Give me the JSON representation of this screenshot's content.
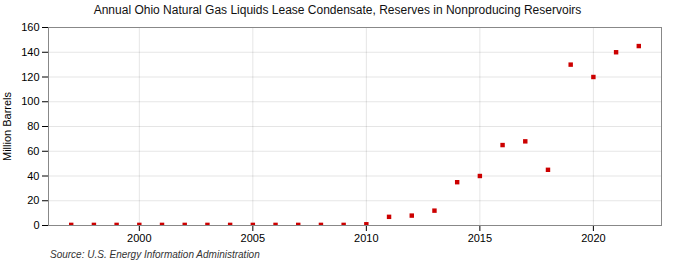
{
  "chart_data": {
    "type": "scatter",
    "title": "Annual Ohio Natural Gas Liquids Lease Condensate, Reserves in Nonproducing Reservoirs",
    "ylabel": "Million Barrels",
    "annotations": [
      "Source: U.S. Energy Information Administration"
    ],
    "x": [
      1997,
      1998,
      1999,
      2000,
      2001,
      2002,
      2003,
      2004,
      2005,
      2006,
      2007,
      2008,
      2009,
      2010,
      2011,
      2012,
      2013,
      2014,
      2015,
      2016,
      2017,
      2018,
      2019,
      2020,
      2021,
      2022
    ],
    "values": [
      0.5,
      0.5,
      0.5,
      0.5,
      0.5,
      0.5,
      0.5,
      0.5,
      0.5,
      0.5,
      0.5,
      0.5,
      0.5,
      1,
      7,
      8,
      12,
      35,
      40,
      65,
      68,
      45,
      130,
      120,
      140,
      145
    ],
    "color": "#cc0000",
    "marker": "square",
    "xlim": [
      1996,
      2023
    ],
    "xticks": [
      2000,
      2005,
      2010,
      2015,
      2020
    ],
    "ylim": [
      0,
      160
    ],
    "yticks": [
      0,
      20,
      40,
      60,
      80,
      100,
      120,
      140,
      160
    ],
    "grid": true
  }
}
